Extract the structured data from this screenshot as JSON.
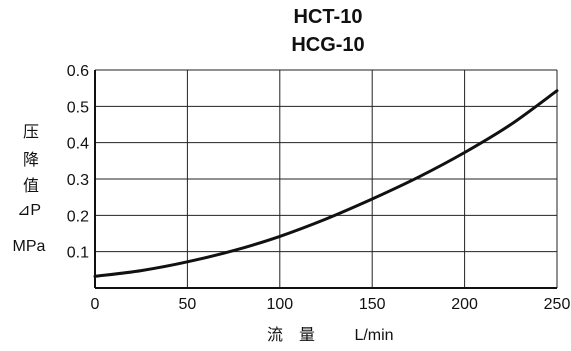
{
  "chart_data": {
    "type": "line",
    "title": [
      "HCT-10",
      "HCG-10"
    ],
    "ylabel": {
      "chars": [
        "压",
        "降",
        "值"
      ],
      "symbol": "⊿P",
      "unit": "MPa"
    },
    "xlabel": {
      "chars": [
        "流",
        "量"
      ],
      "unit": "L/min"
    },
    "xlim": [
      0,
      250
    ],
    "ylim": [
      0,
      0.6
    ],
    "x_ticks": [
      0,
      50,
      100,
      150,
      200,
      250
    ],
    "x_tick_labels": [
      "0",
      "50",
      "100",
      "150",
      "200",
      "250"
    ],
    "y_ticks": [
      0.1,
      0.2,
      0.3,
      0.4,
      0.5,
      0.6
    ],
    "y_tick_labels": [
      "0.1",
      "0.2",
      "0.3",
      "0.4",
      "0.5",
      "0.6"
    ],
    "grid": true,
    "series": [
      {
        "color": "#111111",
        "x": [
          0,
          25,
          50,
          75,
          100,
          125,
          150,
          175,
          200,
          225,
          250
        ],
        "y": [
          0.032,
          0.048,
          0.072,
          0.103,
          0.142,
          0.19,
          0.245,
          0.305,
          0.373,
          0.45,
          0.543
        ]
      }
    ]
  }
}
